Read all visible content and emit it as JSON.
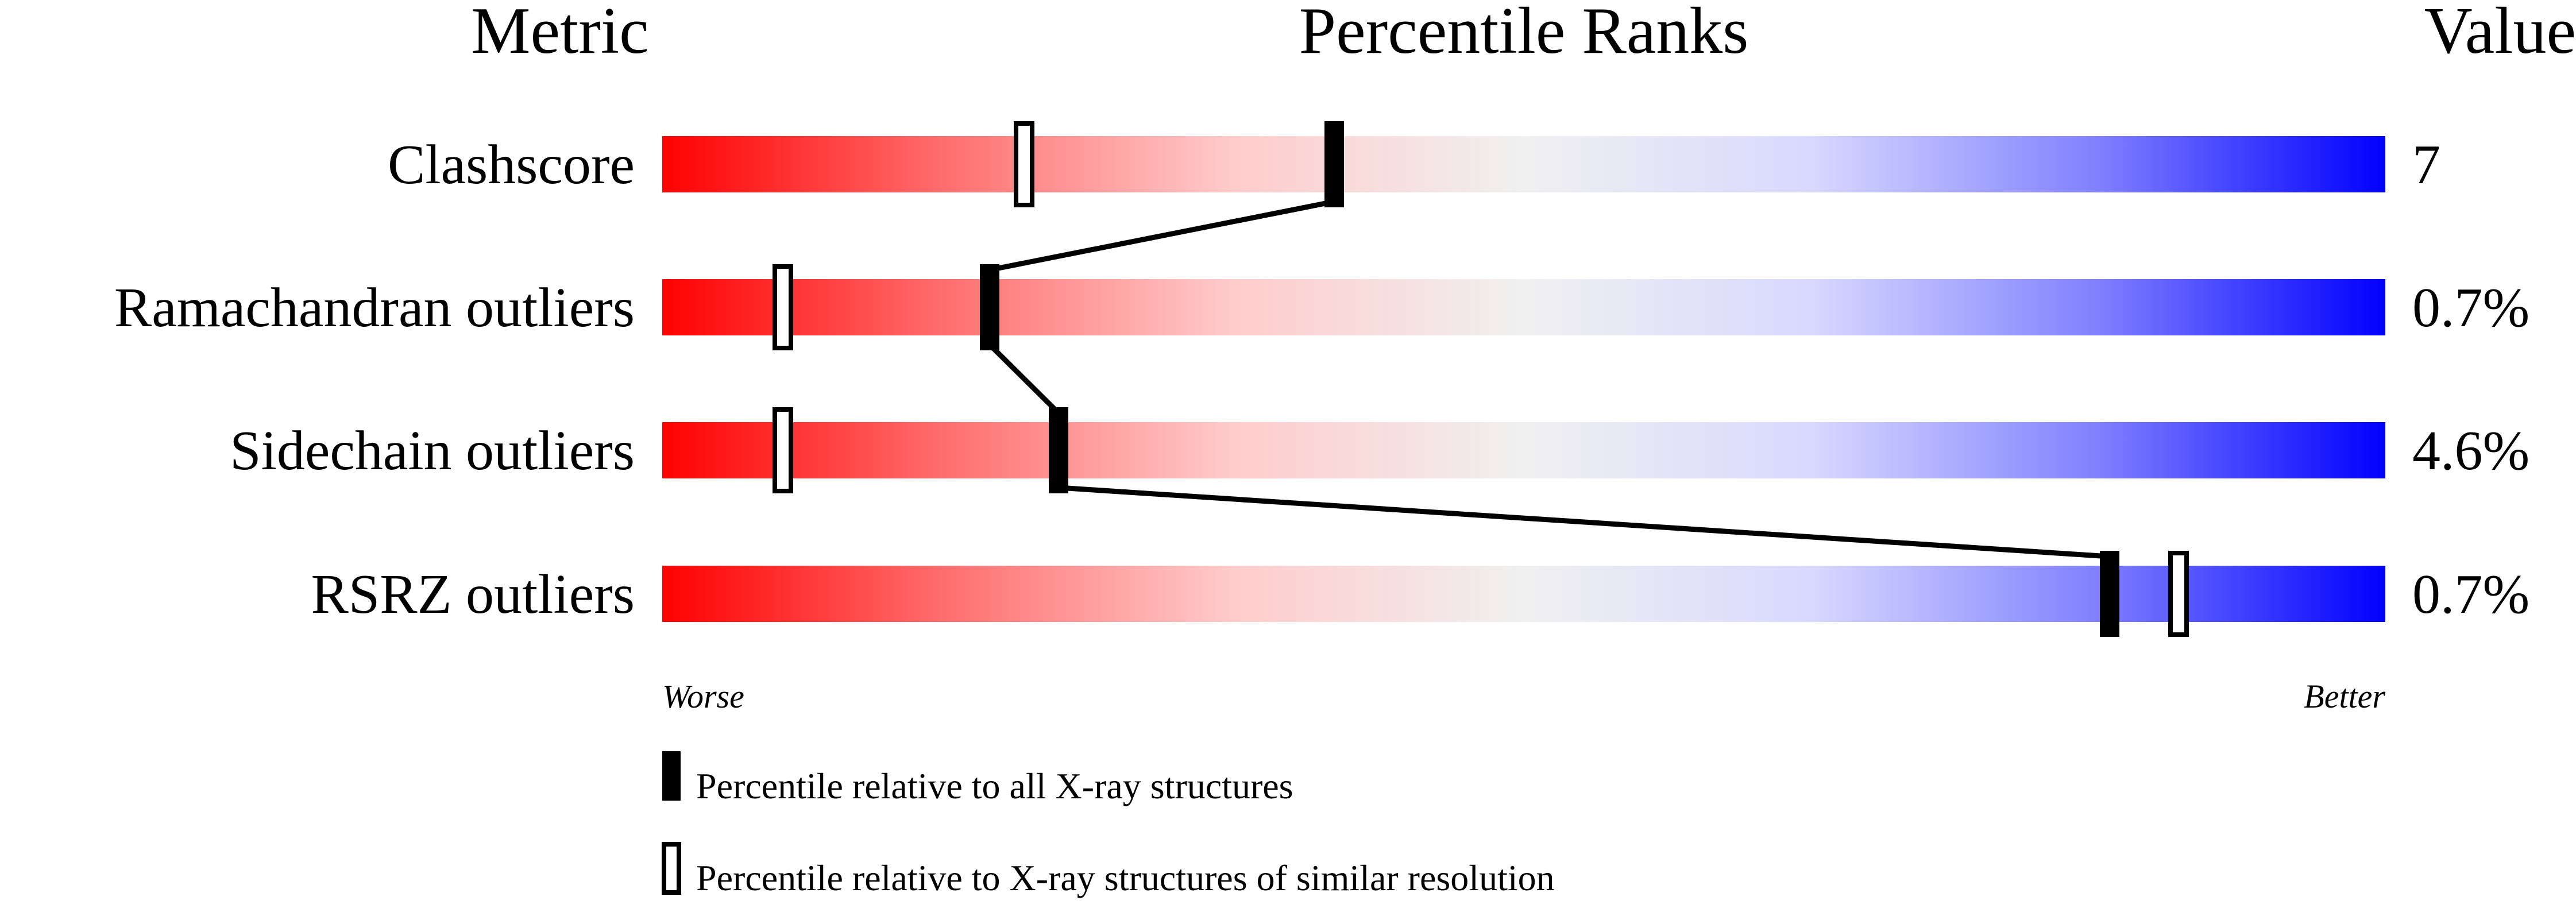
{
  "chart_data": {
    "type": "bar",
    "headers": {
      "metric": "Metric",
      "percentile": "Percentile Ranks",
      "value": "Value"
    },
    "xlim": [
      0,
      100
    ],
    "gradient_colors": [
      "#ff0000",
      "#ff7070",
      "#ffcccc",
      "#f0f0f0",
      "#d8d8ff",
      "#8080ff",
      "#0000ff"
    ],
    "metrics": [
      {
        "name": "Clashscore",
        "value": "7",
        "percentile_all": 39,
        "percentile_similar": 21
      },
      {
        "name": "Ramachandran outliers",
        "value": "0.7%",
        "percentile_all": 19,
        "percentile_similar": 7
      },
      {
        "name": "Sidechain outliers",
        "value": "4.6%",
        "percentile_all": 23,
        "percentile_similar": 7
      },
      {
        "name": "RSRZ outliers",
        "value": "0.7%",
        "percentile_all": 84,
        "percentile_similar": 88
      }
    ],
    "axis_labels": {
      "left": "Worse",
      "right": "Better"
    },
    "legend": [
      {
        "marker": "filled",
        "label": "Percentile relative to all X-ray structures"
      },
      {
        "marker": "open",
        "label": "Percentile relative to X-ray structures of similar resolution"
      }
    ]
  }
}
